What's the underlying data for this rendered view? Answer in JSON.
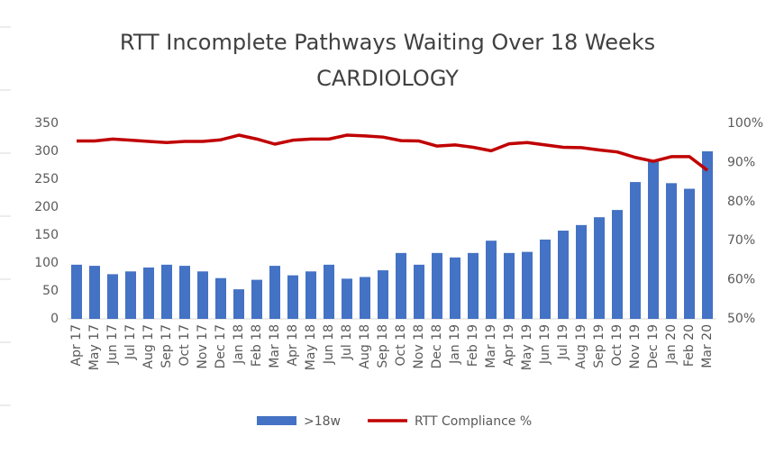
{
  "chart_data": {
    "type": "bar_line",
    "title": "RTT Incomplete Pathways Waiting Over 18 Weeks",
    "subtitle": "CARDIOLOGY",
    "categories": [
      "Apr 17",
      "May 17",
      "Jun 17",
      "Jul 17",
      "Aug 17",
      "Sep 17",
      "Oct 17",
      "Nov 17",
      "Dec 17",
      "Jan 18",
      "Feb 18",
      "Mar 18",
      "Apr 18",
      "May 18",
      "Jun 18",
      "Jul 18",
      "Aug 18",
      "Sep 18",
      "Oct 18",
      "Nov 18",
      "Dec 18",
      "Jan 19",
      "Feb 19",
      "Mar 19",
      "Apr 19",
      "May 19",
      "Jun 19",
      "Jul 19",
      "Aug 19",
      "Sep 19",
      "Oct 19",
      "Nov 19",
      "Dec 19",
      "Jan 20",
      "Feb 20",
      "Mar 20"
    ],
    "series": [
      {
        "name": ">18w",
        "color": "#4472c4",
        "type": "bar",
        "values": [
          97,
          95,
          80,
          85,
          92,
          97,
          95,
          85,
          73,
          53,
          70,
          95,
          78,
          85,
          97,
          72,
          75,
          87,
          118,
          97,
          118,
          110,
          118,
          140,
          118,
          120,
          142,
          158,
          168,
          182,
          195,
          245,
          282,
          243,
          233,
          300
        ]
      },
      {
        "name": "RTT Compliance %",
        "color": "#c00000",
        "type": "line",
        "axis": "y2",
        "values": [
          95.5,
          95.5,
          96,
          95.7,
          95.4,
          95.1,
          95.4,
          95.4,
          95.8,
          97,
          96,
          94.7,
          95.7,
          96,
          96,
          97,
          96.8,
          96.5,
          95.6,
          95.5,
          94.2,
          94.5,
          93.9,
          93,
          94.8,
          95.1,
          94.5,
          93.9,
          93.8,
          93.2,
          92.7,
          91.3,
          90.3,
          91.5,
          91.5,
          88
        ]
      }
    ],
    "ylim": [
      0,
      350
    ],
    "yticks": [
      0,
      50,
      100,
      150,
      200,
      250,
      300,
      350
    ],
    "y2lim": [
      50,
      100
    ],
    "y2ticks": [
      {
        "value": 50,
        "label": "50%"
      },
      {
        "value": 60,
        "label": "60%"
      },
      {
        "value": 70,
        "label": "70%"
      },
      {
        "value": 80,
        "label": "80%"
      },
      {
        "value": 90,
        "label": "90%"
      },
      {
        "value": 100,
        "label": "100%"
      }
    ],
    "legend": "bottom"
  }
}
